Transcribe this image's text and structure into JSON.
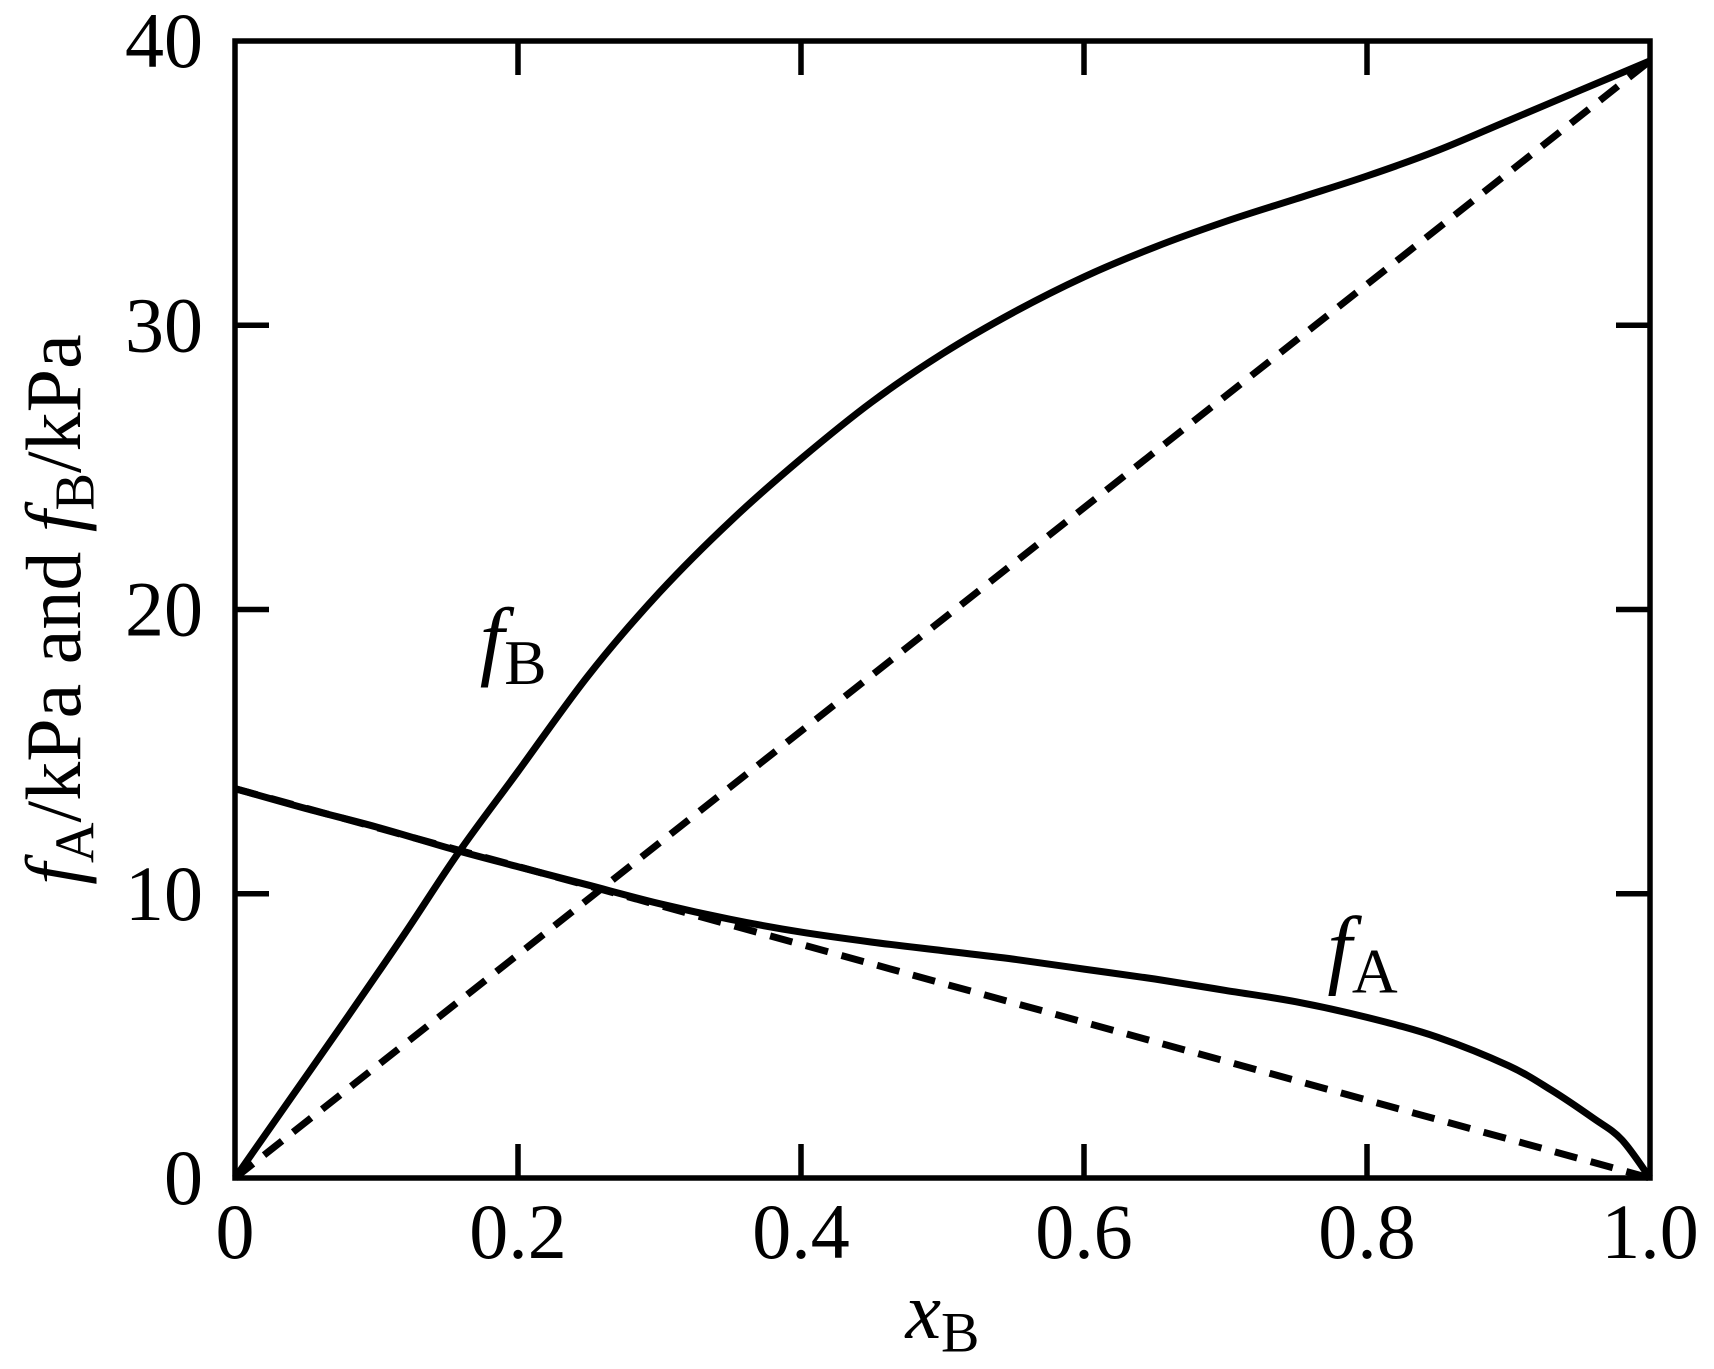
{
  "figure": {
    "background": "#ffffff",
    "ink": "#000000"
  },
  "axes": {
    "x": {
      "title_parts": [
        {
          "t": "x",
          "style": "italic"
        },
        {
          "t": "B",
          "style": "sub"
        }
      ],
      "min": 0,
      "max": 1,
      "tick_labels": [
        {
          "value": 0,
          "label": "0"
        },
        {
          "value": 0.2,
          "label": "0.2"
        },
        {
          "value": 0.4,
          "label": "0.4"
        },
        {
          "value": 0.6,
          "label": "0.6"
        },
        {
          "value": 0.8,
          "label": "0.8"
        },
        {
          "value": 1,
          "label": "1.0"
        }
      ],
      "tick_marks": [
        0.2,
        0.4,
        0.6,
        0.8
      ]
    },
    "y": {
      "title_parts": [
        {
          "t": "f",
          "style": "italic"
        },
        {
          "t": "A",
          "style": "sub"
        },
        {
          "t": "/kPa and ",
          "style": "normal"
        },
        {
          "t": "f",
          "style": "italic"
        },
        {
          "t": "B",
          "style": "sub"
        },
        {
          "t": "/kPa",
          "style": "normal"
        }
      ],
      "min": 0,
      "max": 40,
      "tick_labels": [
        {
          "value": 0,
          "label": "0"
        },
        {
          "value": 10,
          "label": "10"
        },
        {
          "value": 20,
          "label": "20"
        },
        {
          "value": 30,
          "label": "30"
        },
        {
          "value": 40,
          "label": "40"
        }
      ],
      "tick_marks": [
        10,
        20,
        30
      ]
    }
  },
  "chart_data": {
    "type": "line",
    "title": "",
    "xlabel": "x_B",
    "ylabel": "f_A/kPa and f_B/kPa",
    "xlim": [
      0,
      1
    ],
    "ylim": [
      0,
      40
    ],
    "grid": false,
    "legend_position": "none (curves labeled inline)",
    "series": [
      {
        "name": "f_B fugacity curve",
        "line": "solid",
        "color": "#000000",
        "points": [
          [
            0,
            0
          ],
          [
            0.04,
            2.85
          ],
          [
            0.08,
            5.7
          ],
          [
            0.12,
            8.6
          ],
          [
            0.158,
            11.45
          ],
          [
            0.2,
            14.3
          ],
          [
            0.25,
            17.7
          ],
          [
            0.3,
            20.6
          ],
          [
            0.35,
            23.1
          ],
          [
            0.4,
            25.3
          ],
          [
            0.45,
            27.3
          ],
          [
            0.5,
            29.0
          ],
          [
            0.55,
            30.45
          ],
          [
            0.6,
            31.7
          ],
          [
            0.65,
            32.75
          ],
          [
            0.7,
            33.65
          ],
          [
            0.75,
            34.45
          ],
          [
            0.8,
            35.25
          ],
          [
            0.85,
            36.15
          ],
          [
            0.9,
            37.2
          ],
          [
            0.95,
            38.25
          ],
          [
            1,
            39.3
          ]
        ]
      },
      {
        "name": "f_A fugacity curve",
        "line": "solid",
        "color": "#000000",
        "points": [
          [
            0,
            13.7
          ],
          [
            0.05,
            13.0
          ],
          [
            0.1,
            12.35
          ],
          [
            0.155,
            11.55
          ],
          [
            0.2,
            10.95
          ],
          [
            0.25,
            10.3
          ],
          [
            0.3,
            9.65
          ],
          [
            0.35,
            9.1
          ],
          [
            0.4,
            8.65
          ],
          [
            0.45,
            8.3
          ],
          [
            0.5,
            8.0
          ],
          [
            0.55,
            7.7
          ],
          [
            0.6,
            7.35
          ],
          [
            0.65,
            7.0
          ],
          [
            0.7,
            6.6
          ],
          [
            0.75,
            6.2
          ],
          [
            0.8,
            5.65
          ],
          [
            0.85,
            4.95
          ],
          [
            0.9,
            3.95
          ],
          [
            0.93,
            3.1
          ],
          [
            0.96,
            2.1
          ],
          [
            0.98,
            1.35
          ],
          [
            1,
            0
          ]
        ]
      },
      {
        "name": "Raoult ideal-solution line for B",
        "line": "dashed",
        "color": "#000000",
        "points": [
          [
            0,
            0
          ],
          [
            1,
            39.3
          ]
        ]
      },
      {
        "name": "Raoult ideal-solution line for A",
        "line": "dashed",
        "color": "#000000",
        "points": [
          [
            0,
            13.7
          ],
          [
            1,
            0
          ]
        ]
      }
    ],
    "annotations": [
      {
        "id": "label-fB",
        "parts": [
          {
            "t": "f",
            "style": "italic"
          },
          {
            "t": "B",
            "style": "sub"
          }
        ],
        "x": 0.173,
        "y": 17.9
      },
      {
        "id": "label-fA",
        "parts": [
          {
            "t": "f",
            "style": "italic"
          },
          {
            "t": "A",
            "style": "sub"
          }
        ],
        "x": 0.772,
        "y": 7.05
      }
    ]
  }
}
